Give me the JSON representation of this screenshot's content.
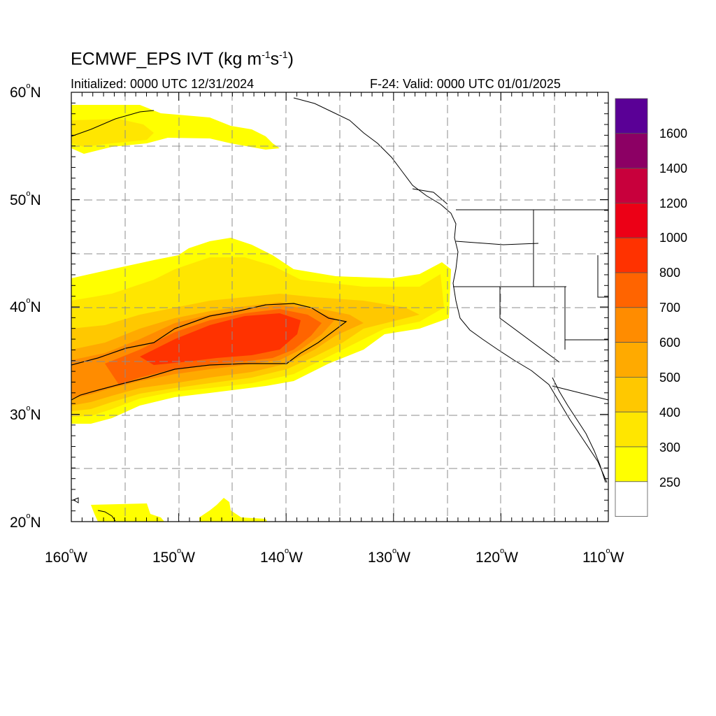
{
  "title": {
    "main": "ECMWF_EPS IVT (kg m",
    "exp1": "-1",
    "mid": "s",
    "exp2": "-1",
    "end": ")"
  },
  "subtitle_left": "Initialized: 0000 UTC 12/31/2024",
  "subtitle_right": "F-24: Valid: 0000 UTC 01/01/2025",
  "lat_labels": [
    {
      "num": "60",
      "deg": "o",
      "hem": "N"
    },
    {
      "num": "50",
      "deg": "o",
      "hem": "N"
    },
    {
      "num": "40",
      "deg": "o",
      "hem": "N"
    },
    {
      "num": "30",
      "deg": "o",
      "hem": "N"
    },
    {
      "num": "20",
      "deg": "o",
      "hem": "N"
    }
  ],
  "lon_labels": [
    {
      "num": "160",
      "deg": "o",
      "hem": "W"
    },
    {
      "num": "150",
      "deg": "o",
      "hem": "W"
    },
    {
      "num": "140",
      "deg": "o",
      "hem": "W"
    },
    {
      "num": "130",
      "deg": "o",
      "hem": "W"
    },
    {
      "num": "120",
      "deg": "o",
      "hem": "W"
    },
    {
      "num": "110",
      "deg": "o",
      "hem": "W"
    }
  ],
  "colorbar": {
    "labels": [
      "1600",
      "1400",
      "1200",
      "1000",
      "800",
      "700",
      "600",
      "500",
      "400",
      "300",
      "250"
    ],
    "colors": [
      "#5a0096",
      "#8c0064",
      "#c8003c",
      "#ec0016",
      "#ff3200",
      "#ff6400",
      "#ff8c00",
      "#ffaa00",
      "#ffc800",
      "#ffe600",
      "#ffff00",
      "#ffffff"
    ]
  },
  "map": {
    "lon_range": [
      -160,
      -110
    ],
    "lat_range": [
      20,
      60
    ],
    "grid": "dashed every 5 degrees",
    "contour_level": 700
  }
}
